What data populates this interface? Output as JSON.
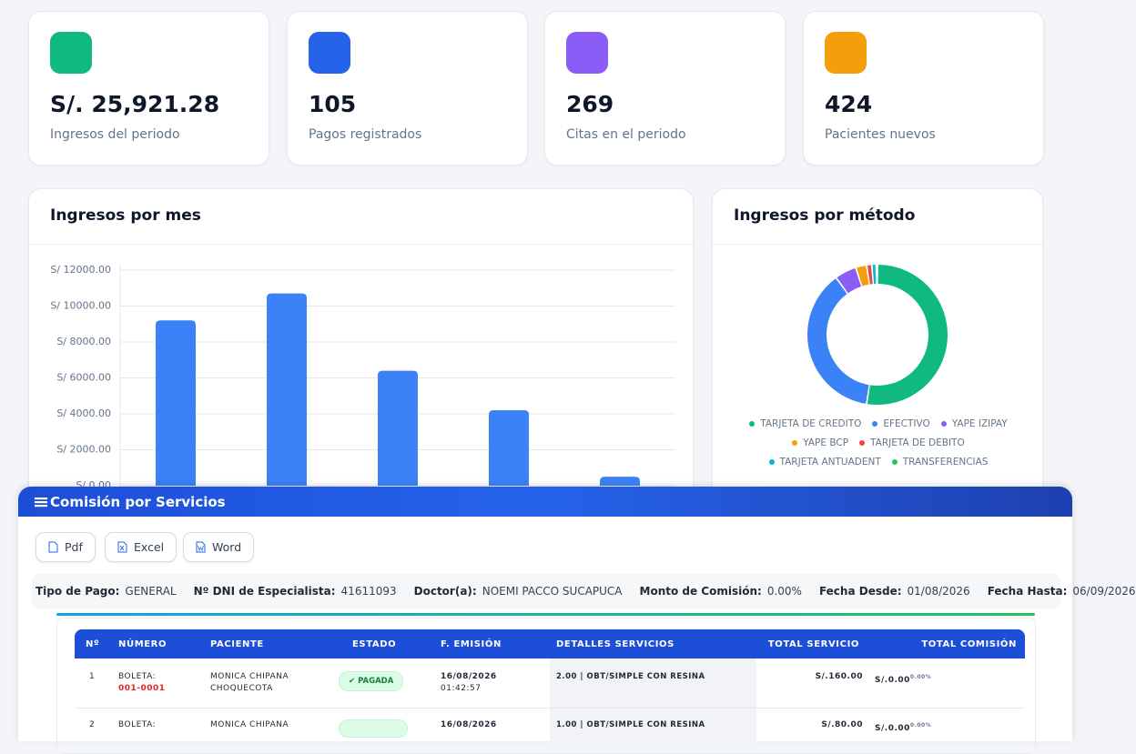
{
  "stats": [
    {
      "value": "S/. 25,921.28",
      "label": "Ingresos del periodo",
      "color": "#10b981"
    },
    {
      "value": "105",
      "label": "Pagos registrados",
      "color": "#2563eb"
    },
    {
      "value": "269",
      "label": "Citas en el periodo",
      "color": "#8b5cf6"
    },
    {
      "value": "424",
      "label": "Pacientes nuevos",
      "color": "#f59e0b"
    }
  ],
  "chart_data": [
    {
      "type": "bar",
      "title": "Ingresos por mes",
      "categories": [
        null,
        null,
        null,
        null,
        null
      ],
      "values": [
        9200,
        10700,
        6400,
        4200,
        500
      ],
      "color": "#3b82f6",
      "ylim": [
        0,
        12000
      ],
      "yticks": [
        {
          "value": 0,
          "label": "S/ 0.00"
        },
        {
          "value": 2000,
          "label": "S/ 2000.00"
        },
        {
          "value": 4000,
          "label": "S/ 4000.00"
        },
        {
          "value": 6000,
          "label": "S/ 6000.00"
        },
        {
          "value": 8000,
          "label": "S/ 8000.00"
        },
        {
          "value": 10000,
          "label": "S/ 10000.00"
        },
        {
          "value": 12000,
          "label": "S/ 12000.00"
        }
      ],
      "grid": true
    },
    {
      "type": "pie",
      "title": "Ingresos por método",
      "categories": [
        "TARJETA DE CREDITO",
        "EFECTIVO",
        "YAPE IZIPAY",
        "YAPE BCP",
        "TARJETA DE DEBITO",
        "TARJETA ANTUADENT",
        "TRANSFERENCIAS"
      ],
      "values": [
        52.5,
        37.5,
        5,
        2.5,
        1.2,
        1,
        0.3
      ],
      "colors": [
        "#10b981",
        "#3b82f6",
        "#8b5cf6",
        "#f59e0b",
        "#ef4444",
        "#06b6d4",
        "#22c55e"
      ],
      "legend": "bottom"
    }
  ],
  "commission": {
    "title": "Comisión por Servicios",
    "buttons": [
      "Pdf",
      "Excel",
      "Word"
    ],
    "filters": [
      {
        "label": "Tipo de Pago:",
        "value": "GENERAL"
      },
      {
        "label": "Nº DNI de Especialista:",
        "value": "41611093"
      },
      {
        "label": "Doctor(a):",
        "value": "NOEMI PACCO SUCAPUCA"
      },
      {
        "label": "Monto de Comisión:",
        "value": "0.00%"
      },
      {
        "label": "Fecha Desde:",
        "value": "01/08/2026"
      },
      {
        "label": "Fecha Hasta:",
        "value": "06/09/2026"
      }
    ],
    "table": {
      "headers": [
        "Nº",
        "NÚMERO",
        "PACIENTE",
        "ESTADO",
        "F. EMISIÓN",
        "DETALLES SERVICIOS",
        "TOTAL SERVICIO",
        "TOTAL COMISIÓN"
      ],
      "rows": [
        {
          "n": "1",
          "doc": "BOLETA:",
          "number": "001-0001",
          "patient": "MONICA CHIPANA CHOQUECOTA",
          "status": "PAGADA",
          "date": "16/08/2026",
          "time": "01:42:57",
          "detail": "2.00 | OBT/SIMPLE CON RESINA",
          "total": "S/.160.00",
          "commission": "S/.0.00",
          "rate": "0.00%"
        },
        {
          "n": "2",
          "doc": "BOLETA:",
          "patient": "MONICA CHIPANA",
          "date": "16/08/2026",
          "detail": "1.00 | OBT/SIMPLE CON RESINA",
          "total": "S/.80.00",
          "commission": "S/.0.00",
          "rate": "0.00%"
        }
      ]
    }
  }
}
